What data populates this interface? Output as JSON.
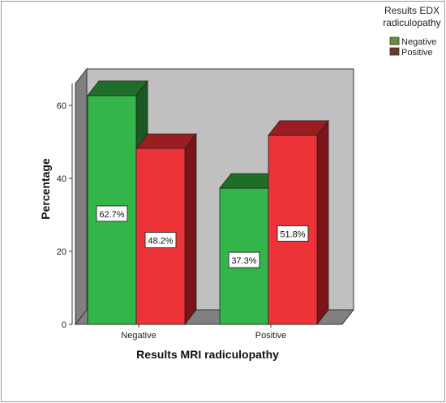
{
  "chart_data": {
    "type": "bar",
    "title": "",
    "xlabel": "Results MRI radiculopathy",
    "ylabel": "Percentage",
    "ylim": [
      0,
      70
    ],
    "yticks": [
      0,
      20,
      40,
      60
    ],
    "categories": [
      "Negative",
      "Positive"
    ],
    "legend_title": "Results EDX radiculopathy",
    "legend_title_lines": [
      "Results EDX",
      "radiculopathy"
    ],
    "legend_position": "top-right",
    "series": [
      {
        "name": "Negative",
        "values": [
          62.7,
          37.3
        ],
        "labels": [
          "62.7%",
          "37.3%"
        ],
        "color": "#33b54a",
        "top_color": "#1e6e2a",
        "side_color": "#1a5a22",
        "legend_color": "#6b8e3a"
      },
      {
        "name": "Positive",
        "values": [
          48.2,
          51.8
        ],
        "labels": [
          "48.2%",
          "51.8%"
        ],
        "color": "#ee3338",
        "top_color": "#9a1d22",
        "side_color": "#7a1418",
        "legend_color": "#6b3a1e"
      }
    ],
    "colors": {
      "back_wall": "#c0c0c0",
      "side_wall": "#808080",
      "floor": "#808080"
    }
  }
}
